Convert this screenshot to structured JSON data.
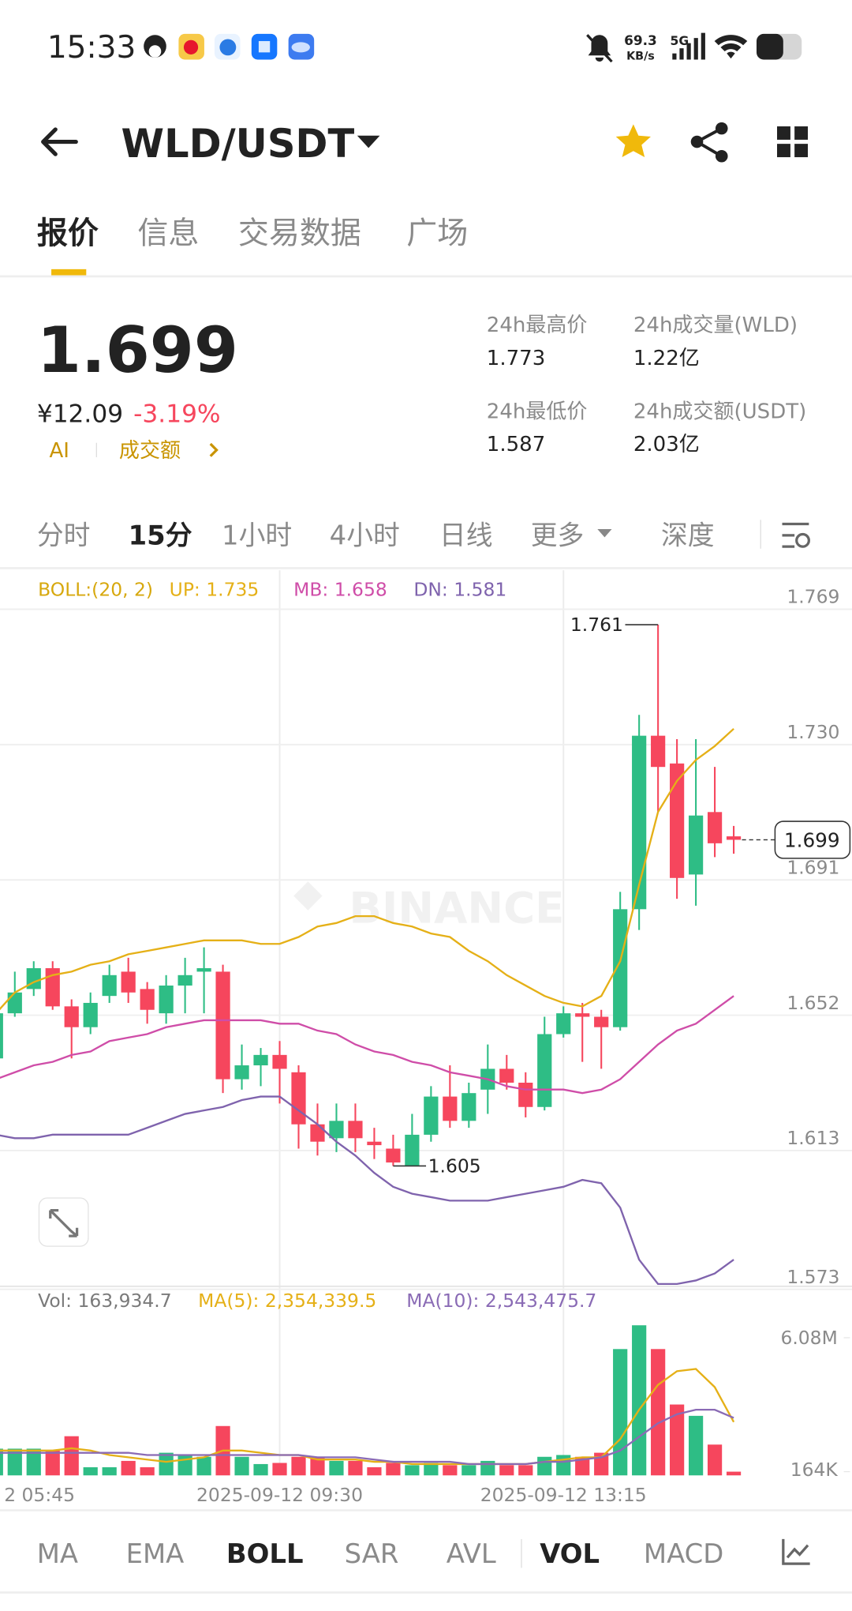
{
  "status_bar": {
    "time": "15:33",
    "net_speed": "69.3",
    "net_unit": "KB/s",
    "network": "5G"
  },
  "header": {
    "pair": "WLD/USDT"
  },
  "tabs": [
    "报价",
    "信息",
    "交易数据",
    "广场"
  ],
  "ticker": {
    "price": "1.699",
    "cny": "¥12.09",
    "change": "-3.19%",
    "ai": "AI",
    "volume_link": "成交额",
    "stats": [
      {
        "label": "24h最高价",
        "value": "1.773"
      },
      {
        "label": "24h成交量(WLD)",
        "value": "1.22亿"
      },
      {
        "label": "24h最低价",
        "value": "1.587"
      },
      {
        "label": "24h成交额(USDT)",
        "value": "2.03亿"
      }
    ]
  },
  "intervals": [
    "分时",
    "15分",
    "1小时",
    "4小时",
    "日线",
    "更多",
    "深度"
  ],
  "indicators": [
    "MA",
    "EMA",
    "BOLL",
    "SAR",
    "AVL",
    "VOL",
    "MACD"
  ],
  "chart_data": {
    "type": "candlestick",
    "watermark": "BINANCE",
    "categories": [
      "2 05:45",
      null,
      null,
      null,
      null,
      null,
      null,
      null,
      null,
      null,
      null,
      null,
      null,
      null,
      null,
      "2025-09-12 09:30",
      null,
      null,
      null,
      null,
      null,
      null,
      null,
      null,
      null,
      null,
      null,
      null,
      null,
      null,
      "2025-09-12 13:15",
      null,
      null,
      null,
      null,
      null,
      null,
      null,
      null,
      null
    ],
    "open": [
      1.636,
      1.649,
      1.656,
      1.662,
      1.651,
      1.645,
      1.654,
      1.661,
      1.656,
      1.649,
      1.657,
      1.661,
      1.661,
      1.63,
      1.634,
      1.637,
      1.632,
      1.617,
      1.613,
      1.618,
      1.612,
      1.61,
      1.605,
      1.614,
      1.625,
      1.618,
      1.627,
      1.633,
      1.629,
      1.622,
      1.643,
      1.649,
      1.648,
      1.645,
      1.679,
      1.729,
      1.721,
      1.689,
      1.707,
      1.7
    ],
    "high": [
      1.652,
      1.661,
      1.664,
      1.664,
      1.653,
      1.655,
      1.663,
      1.665,
      1.658,
      1.66,
      1.665,
      1.668,
      1.663,
      1.64,
      1.639,
      1.641,
      1.634,
      1.623,
      1.623,
      1.623,
      1.616,
      1.614,
      1.62,
      1.628,
      1.634,
      1.629,
      1.64,
      1.637,
      1.632,
      1.648,
      1.651,
      1.652,
      1.65,
      1.684,
      1.735,
      1.761,
      1.728,
      1.728,
      1.72,
      1.703
    ],
    "low": [
      1.635,
      1.648,
      1.654,
      1.65,
      1.636,
      1.643,
      1.652,
      1.652,
      1.646,
      1.646,
      1.649,
      1.649,
      1.626,
      1.627,
      1.628,
      1.623,
      1.61,
      1.608,
      1.609,
      1.609,
      1.607,
      1.605,
      1.605,
      1.612,
      1.616,
      1.616,
      1.62,
      1.627,
      1.619,
      1.621,
      1.642,
      1.635,
      1.633,
      1.644,
      1.673,
      1.707,
      1.682,
      1.68,
      1.694,
      1.695
    ],
    "close": [
      1.649,
      1.655,
      1.662,
      1.651,
      1.645,
      1.652,
      1.66,
      1.655,
      1.65,
      1.657,
      1.66,
      1.662,
      1.63,
      1.634,
      1.637,
      1.633,
      1.617,
      1.612,
      1.618,
      1.613,
      1.611,
      1.606,
      1.614,
      1.625,
      1.618,
      1.626,
      1.633,
      1.629,
      1.622,
      1.643,
      1.649,
      1.648,
      1.645,
      1.679,
      1.729,
      1.72,
      1.688,
      1.706,
      1.698,
      1.699
    ],
    "up_color": "#2ebd85",
    "down_color": "#f6465d",
    "ylim": [
      1.5709,
      1.7767
    ],
    "yticks": [
      1.769,
      {
        "value": 1.73,
        "label": "1.730"
      },
      1.691,
      1.652,
      1.613,
      1.573
    ],
    "grid": true,
    "high_label": 1.761,
    "low_label": 1.605,
    "last_price": 1.699,
    "indicator_title": "BOLL:(20, 2)",
    "indicator_title_color": "#d7a80d",
    "series": [
      {
        "name": "UP: 1.735",
        "color": "#e5b017",
        "values": [
          1.649,
          1.655,
          1.658,
          1.66,
          1.661,
          1.663,
          1.664,
          1.666,
          1.667,
          1.668,
          1.669,
          1.67,
          1.67,
          1.67,
          1.669,
          1.669,
          1.671,
          1.674,
          1.675,
          1.677,
          1.677,
          1.675,
          1.674,
          1.672,
          1.671,
          1.667,
          1.664,
          1.66,
          1.657,
          1.654,
          1.652,
          1.651,
          1.654,
          1.664,
          1.686,
          1.707,
          1.716,
          1.722,
          1.726,
          1.731
        ]
      },
      {
        "name": "MB: 1.658",
        "color": "#cf4da8",
        "values": [
          1.63,
          1.632,
          1.634,
          1.635,
          1.637,
          1.638,
          1.641,
          1.642,
          1.643,
          1.645,
          1.646,
          1.647,
          1.647,
          1.647,
          1.647,
          1.646,
          1.646,
          1.644,
          1.643,
          1.64,
          1.638,
          1.637,
          1.635,
          1.634,
          1.632,
          1.631,
          1.63,
          1.628,
          1.627,
          1.627,
          1.627,
          1.626,
          1.627,
          1.63,
          1.635,
          1.64,
          1.644,
          1.646,
          1.65,
          1.654
        ]
      },
      {
        "name": "DN: 1.581",
        "color": "#7f63ad",
        "values": [
          1.614,
          1.613,
          1.613,
          1.614,
          1.614,
          1.614,
          1.614,
          1.614,
          1.616,
          1.618,
          1.62,
          1.621,
          1.622,
          1.624,
          1.625,
          1.625,
          1.621,
          1.617,
          1.612,
          1.608,
          1.603,
          1.599,
          1.597,
          1.596,
          1.595,
          1.595,
          1.595,
          1.596,
          1.597,
          1.598,
          1.599,
          1.601,
          1.6,
          1.593,
          1.578,
          1.571,
          1.571,
          1.572,
          1.574,
          1.578
        ]
      }
    ],
    "volume": {
      "name": "Vol: 163,934.7",
      "name_color": "#7a7a7a",
      "values": [
        1180000,
        1180000,
        1180000,
        1090000,
        1730000,
        360000,
        360000,
        640000,
        360000,
        1000000,
        900000,
        820000,
        2180000,
        820000,
        500000,
        550000,
        820000,
        820000,
        640000,
        640000,
        360000,
        550000,
        450000,
        550000,
        450000,
        450000,
        640000,
        450000,
        450000,
        820000,
        900000,
        820000,
        1000000,
        5580000,
        6630000,
        5580000,
        3130000,
        2630000,
        1360000,
        163934.7
      ],
      "ylim": [
        0,
        7080000
      ],
      "yticks": [
        {
          "value": 6080000,
          "label": "6.08M"
        },
        {
          "value": 164000,
          "label": "164K"
        }
      ],
      "series": [
        {
          "name": "MA(5): 2,354,339.5",
          "color": "#e5b017",
          "values": [
            1100000,
            1100000,
            1100000,
            1100000,
            1200000,
            1100000,
            900000,
            800000,
            700000,
            600000,
            700000,
            800000,
            1100000,
            1100000,
            1000000,
            900000,
            900000,
            700000,
            700000,
            700000,
            600000,
            600000,
            500000,
            500000,
            500000,
            500000,
            500000,
            500000,
            500000,
            600000,
            700000,
            800000,
            800000,
            1600000,
            2900000,
            4000000,
            4600000,
            4700000,
            3900000,
            2354339.5
          ]
        },
        {
          "name": "MA(10): 2,543,475.7",
          "color": "#8a6bb5",
          "values": [
            1000000,
            1000000,
            1000000,
            1000000,
            1000000,
            1000000,
            1000000,
            1000000,
            900000,
            900000,
            900000,
            900000,
            900000,
            900000,
            900000,
            900000,
            900000,
            800000,
            800000,
            800000,
            700000,
            600000,
            600000,
            600000,
            600000,
            500000,
            500000,
            500000,
            500000,
            600000,
            600000,
            700000,
            800000,
            1100000,
            1700000,
            2300000,
            2700000,
            2900000,
            2900000,
            2543475.7
          ]
        }
      ]
    }
  }
}
